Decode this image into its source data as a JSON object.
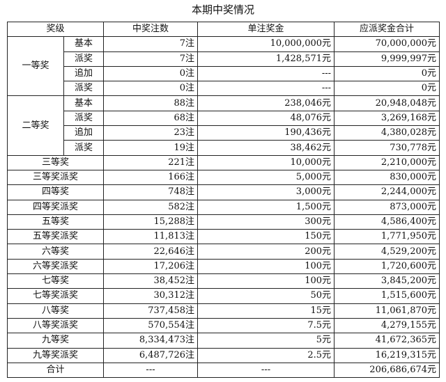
{
  "title": "本期中奖情况",
  "headers": {
    "level": "奖级",
    "count": "中奖注数",
    "unit": "单注奖金",
    "total": "应派奖金合计"
  },
  "groups": [
    {
      "level": "一等奖",
      "rows": [
        {
          "sub": "基本",
          "count": "7注",
          "unit": "10,000,000元",
          "total": "70,000,000元"
        },
        {
          "sub": "派奖",
          "count": "7注",
          "unit": "1,428,571元",
          "total": "9,999,997元"
        },
        {
          "sub": "追加",
          "count": "0注",
          "unit": "---",
          "total": "0元"
        },
        {
          "sub": "派奖",
          "count": "0注",
          "unit": "---",
          "total": "0元"
        }
      ]
    },
    {
      "level": "二等奖",
      "rows": [
        {
          "sub": "基本",
          "count": "88注",
          "unit": "238,046元",
          "total": "20,948,048元"
        },
        {
          "sub": "派奖",
          "count": "68注",
          "unit": "48,076元",
          "total": "3,269,168元"
        },
        {
          "sub": "追加",
          "count": "23注",
          "unit": "190,436元",
          "total": "4,380,028元"
        },
        {
          "sub": "派奖",
          "count": "19注",
          "unit": "38,462元",
          "total": "730,778元"
        }
      ]
    }
  ],
  "rows": [
    {
      "level": "三等奖",
      "count": "221注",
      "unit": "10,000元",
      "total": "2,210,000元"
    },
    {
      "level": "三等奖派奖",
      "count": "166注",
      "unit": "5,000元",
      "total": "830,000元"
    },
    {
      "level": "四等奖",
      "count": "748注",
      "unit": "3,000元",
      "total": "2,244,000元"
    },
    {
      "level": "四等奖派奖",
      "count": "582注",
      "unit": "1,500元",
      "total": "873,000元"
    },
    {
      "level": "五等奖",
      "count": "15,288注",
      "unit": "300元",
      "total": "4,586,400元"
    },
    {
      "level": "五等奖派奖",
      "count": "11,813注",
      "unit": "150元",
      "total": "1,771,950元"
    },
    {
      "level": "六等奖",
      "count": "22,646注",
      "unit": "200元",
      "total": "4,529,200元"
    },
    {
      "level": "六等奖派奖",
      "count": "17,206注",
      "unit": "100元",
      "total": "1,720,600元"
    },
    {
      "level": "七等奖",
      "count": "38,452注",
      "unit": "100元",
      "total": "3,845,200元"
    },
    {
      "level": "七等奖派奖",
      "count": "30,312注",
      "unit": "50元",
      "total": "1,515,600元"
    },
    {
      "level": "八等奖",
      "count": "737,458注",
      "unit": "15元",
      "total": "11,061,870元"
    },
    {
      "level": "八等奖派奖",
      "count": "570,554注",
      "unit": "7.5元",
      "total": "4,279,155元"
    },
    {
      "level": "九等奖",
      "count": "8,334,473注",
      "unit": "5元",
      "total": "41,672,365元"
    },
    {
      "level": "九等奖派奖",
      "count": "6,487,726注",
      "unit": "2.5元",
      "total": "16,219,315元"
    }
  ],
  "summary": {
    "level": "合计",
    "count": "---",
    "unit": "---",
    "total": "206,686,674元"
  }
}
